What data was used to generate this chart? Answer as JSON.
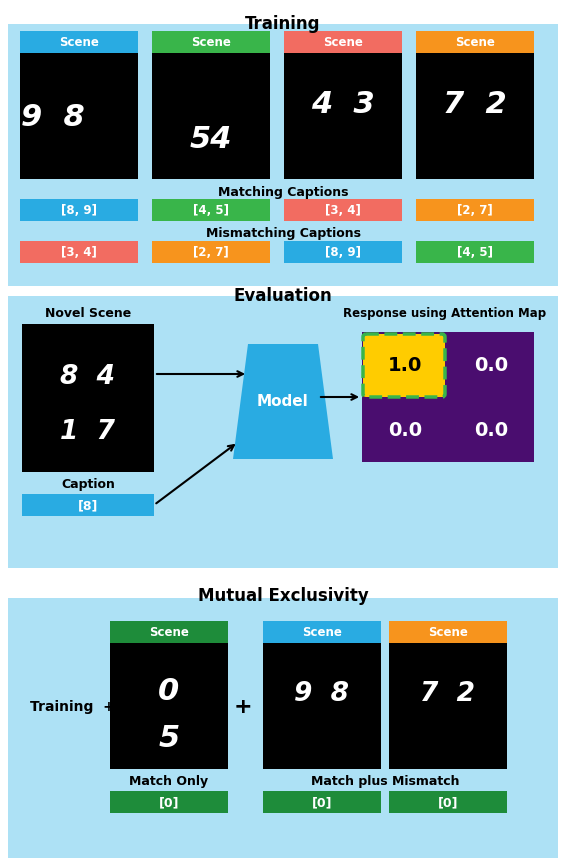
{
  "title_training": "Training",
  "title_evaluation": "Evaluation",
  "title_mutual": "Mutual Exclusivity",
  "bg_light_blue": "#ADE1F5",
  "bg_white": "#FFFFFF",
  "color_blue": "#29ABE2",
  "color_green": "#39B54A",
  "color_red": "#F26C61",
  "color_orange": "#F7941D",
  "color_dark_green": "#1E8C3A",
  "color_purple": "#4A0D6F",
  "color_yellow": "#FFCC00",
  "color_black": "#000000",
  "color_white": "#FFFFFF",
  "scene_labels_training": [
    "Scene",
    "Scene",
    "Scene",
    "Scene"
  ],
  "scene_colors_training": [
    "#29ABE2",
    "#39B54A",
    "#F26C61",
    "#F7941D"
  ],
  "matching_captions": [
    "[8, 9]",
    "[4, 5]",
    "[3, 4]",
    "[2, 7]"
  ],
  "matching_caption_colors": [
    "#29ABE2",
    "#39B54A",
    "#F26C61",
    "#F7941D"
  ],
  "mismatching_captions": [
    "[3, 4]",
    "[2, 7]",
    "[8, 9]",
    "[4, 5]"
  ],
  "mismatching_caption_colors": [
    "#F26C61",
    "#F7941D",
    "#29ABE2",
    "#39B54A"
  ],
  "novel_scene_label": "Novel Scene",
  "caption_label": "Caption",
  "caption_text": "[8]",
  "model_label": "Model",
  "response_label": "Response using Attention Map",
  "attention_values": [
    [
      1.0,
      0.0
    ],
    [
      0.0,
      0.0
    ]
  ],
  "mutual_scene_colors": [
    "#1E8C3A",
    "#29ABE2",
    "#F7941D"
  ],
  "mutual_match_label": "Match Only",
  "mutual_mismatch_label": "Match plus Mismatch",
  "mutual_captions": [
    "[0]",
    "[0]",
    "[0]"
  ],
  "mutual_caption_color": "#1E8C3A"
}
